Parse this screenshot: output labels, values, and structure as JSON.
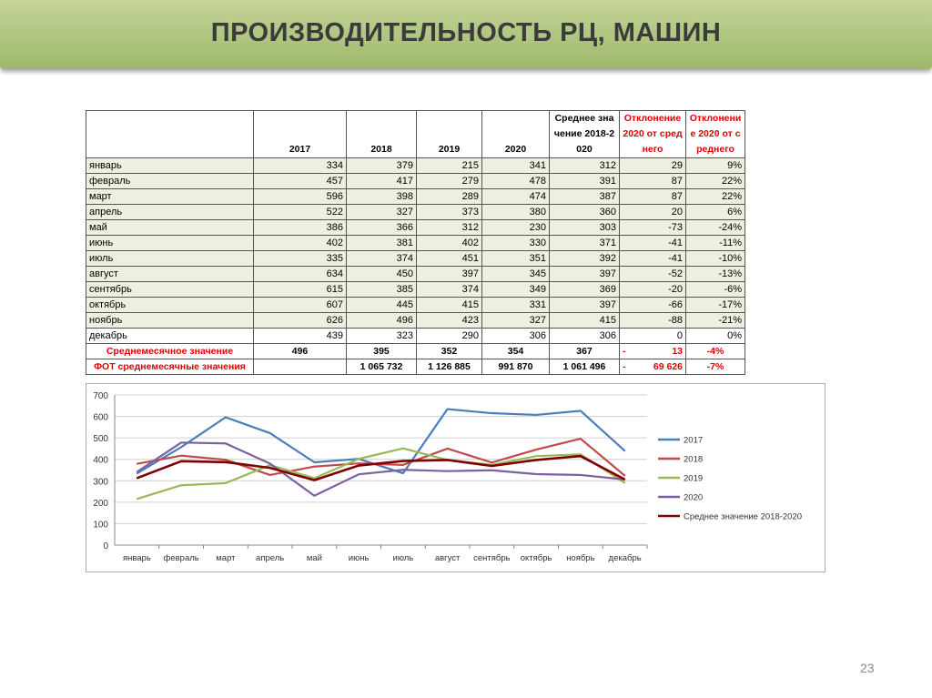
{
  "title": "ПРОИЗВОДИТЕЛЬНОСТЬ РЦ, МАШИН",
  "page_number": "23",
  "table": {
    "headers": [
      "",
      "2017",
      "2018",
      "2019",
      "2020",
      "Среднее значение 2018-2020",
      "Отклонение 2020 от среднего",
      "Отклонение 2020 от среднего"
    ],
    "rows": [
      [
        "январь",
        "334",
        "379",
        "215",
        "341",
        "312",
        "29",
        "9%"
      ],
      [
        "февраль",
        "457",
        "417",
        "279",
        "478",
        "391",
        "87",
        "22%"
      ],
      [
        "март",
        "596",
        "398",
        "289",
        "474",
        "387",
        "87",
        "22%"
      ],
      [
        "апрель",
        "522",
        "327",
        "373",
        "380",
        "360",
        "20",
        "6%"
      ],
      [
        "май",
        "386",
        "366",
        "312",
        "230",
        "303",
        "-73",
        "-24%"
      ],
      [
        "июнь",
        "402",
        "381",
        "402",
        "330",
        "371",
        "-41",
        "-11%"
      ],
      [
        "июль",
        "335",
        "374",
        "451",
        "351",
        "392",
        "-41",
        "-10%"
      ],
      [
        "август",
        "634",
        "450",
        "397",
        "345",
        "397",
        "-52",
        "-13%"
      ],
      [
        "сентябрь",
        "615",
        "385",
        "374",
        "349",
        "369",
        "-20",
        "-6%"
      ],
      [
        "октябрь",
        "607",
        "445",
        "415",
        "331",
        "397",
        "-66",
        "-17%"
      ],
      [
        "ноябрь",
        "626",
        "496",
        "423",
        "327",
        "415",
        "-88",
        "-21%"
      ],
      [
        "декабрь",
        "439",
        "323",
        "290",
        "306",
        "306",
        "0",
        "0%"
      ]
    ],
    "summary": [
      [
        "Среднемесячное значение",
        "496",
        "395",
        "352",
        "354",
        "367",
        "-",
        "13",
        "-4%"
      ],
      [
        "ФОТ среднемесячные значения",
        "",
        "1 065 732",
        "1 126 885",
        "991 870",
        "1 061 496",
        "-",
        "69 626",
        "-7%"
      ]
    ]
  },
  "chart_data": {
    "type": "line",
    "categories": [
      "январь",
      "февраль",
      "март",
      "апрель",
      "май",
      "июнь",
      "июль",
      "август",
      "сентябрь",
      "октябрь",
      "ноябрь",
      "декабрь"
    ],
    "ylim": [
      0,
      700
    ],
    "yticks": [
      "0",
      "100",
      "200",
      "300",
      "400",
      "500",
      "600",
      "700"
    ],
    "grid": true,
    "legend": "right",
    "series": [
      {
        "name": "2017",
        "color": "#4a7ebb",
        "values": [
          334,
          457,
          596,
          522,
          386,
          402,
          335,
          634,
          615,
          607,
          626,
          439
        ]
      },
      {
        "name": "2018",
        "color": "#be4b48",
        "values": [
          379,
          417,
          398,
          327,
          366,
          381,
          374,
          450,
          385,
          445,
          496,
          323
        ]
      },
      {
        "name": "2019",
        "color": "#98b954",
        "values": [
          215,
          279,
          289,
          373,
          312,
          402,
          451,
          397,
          374,
          415,
          423,
          290
        ]
      },
      {
        "name": "2020",
        "color": "#7d60a0",
        "values": [
          341,
          478,
          474,
          380,
          230,
          330,
          351,
          345,
          349,
          331,
          327,
          306
        ]
      },
      {
        "name": "Среднее значение 2018-2020",
        "color": "#7f0000",
        "values": [
          312,
          391,
          387,
          360,
          303,
          371,
          392,
          397,
          369,
          397,
          415,
          306
        ]
      }
    ]
  }
}
